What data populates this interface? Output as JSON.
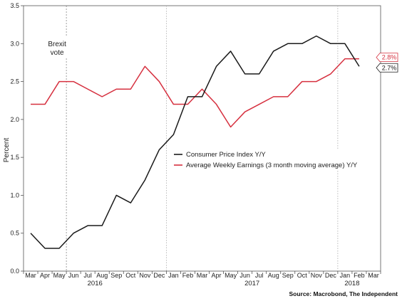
{
  "chart_data": {
    "type": "line",
    "ylabel": "Percent",
    "ylim": [
      0,
      3.5
    ],
    "yticks": [
      "0.0",
      "0.5",
      "1.0",
      "1.5",
      "2.0",
      "2.5",
      "3.0",
      "3.5"
    ],
    "categories": [
      "Mar",
      "Apr",
      "May",
      "Jun",
      "Jul",
      "Aug",
      "Sep",
      "Oct",
      "Nov",
      "Dec",
      "Jan",
      "Feb",
      "Mar",
      "Apr",
      "May",
      "Jun",
      "Jul",
      "Aug",
      "Sep",
      "Oct",
      "Nov",
      "Dec",
      "Jan",
      "Feb",
      "Mar"
    ],
    "years": [
      {
        "label": "2016",
        "center_index": 4.5
      },
      {
        "label": "2017",
        "center_index": 15.5
      },
      {
        "label": "2018",
        "center_index": 22.5
      }
    ],
    "series": [
      {
        "name": "Consumer Price Index Y/Y",
        "color": "#1a1a1a",
        "values": [
          0.5,
          0.3,
          0.3,
          0.5,
          0.6,
          0.6,
          1.0,
          0.9,
          1.2,
          1.6,
          1.8,
          2.3,
          2.3,
          2.7,
          2.9,
          2.6,
          2.6,
          2.9,
          3.0,
          3.0,
          3.1,
          3.0,
          3.0,
          2.7,
          null
        ],
        "end_label": "2.7%"
      },
      {
        "name": "Average Weekly Earnings (3 month moving average) Y/Y",
        "color": "#d6303f",
        "values": [
          2.2,
          2.2,
          2.5,
          2.5,
          2.4,
          2.3,
          2.4,
          2.4,
          2.7,
          2.5,
          2.2,
          2.2,
          2.4,
          2.2,
          1.9,
          2.1,
          2.2,
          2.3,
          2.3,
          2.5,
          2.5,
          2.6,
          2.8,
          2.8,
          null
        ],
        "end_label": "2.8%"
      }
    ],
    "annotations": [
      {
        "text_lines": [
          "Brexit",
          "vote"
        ],
        "at_index": 2.5
      }
    ],
    "vlines_at_index": [
      2.5,
      9.5,
      21.5
    ],
    "legend_position": "center"
  },
  "source": "Source: Macrobond, The Independent",
  "colors": {
    "cpi": "#1a1a1a",
    "earnings": "#d6303f",
    "axis": "#444444",
    "grid": "#999999"
  }
}
